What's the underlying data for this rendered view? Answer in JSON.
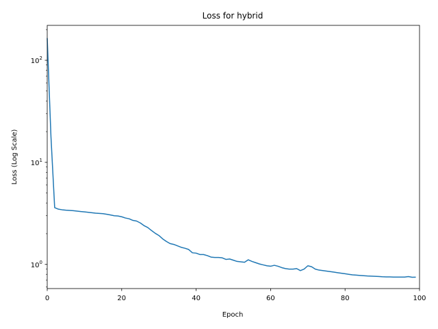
{
  "chart_data": {
    "type": "line",
    "title": "Loss for hybrid",
    "xlabel": "Epoch",
    "ylabel": "Loss (Log Scale)",
    "yscale": "log",
    "xlim": [
      0,
      100
    ],
    "ylim": [
      0.58,
      220
    ],
    "grid": false,
    "color": "#1f77b4",
    "x_ticks": [
      {
        "value": 0,
        "label": "0"
      },
      {
        "value": 20,
        "label": "20"
      },
      {
        "value": 40,
        "label": "40"
      },
      {
        "value": 60,
        "label": "60"
      },
      {
        "value": 80,
        "label": "80"
      },
      {
        "value": 100,
        "label": "100"
      }
    ],
    "y_ticks": [
      {
        "value": 1,
        "base": "10",
        "exp": "0"
      },
      {
        "value": 10,
        "base": "10",
        "exp": "1"
      },
      {
        "value": 100,
        "base": "10",
        "exp": "2"
      }
    ],
    "series": [
      {
        "x": [
          0,
          1,
          2,
          3,
          4,
          5,
          6,
          7,
          8,
          9,
          10,
          11,
          12,
          13,
          14,
          15,
          16,
          17,
          18,
          19,
          20,
          21,
          22,
          23,
          24,
          25,
          26,
          27,
          28,
          29,
          30,
          31,
          32,
          33,
          34,
          35,
          36,
          37,
          38,
          39,
          40,
          41,
          42,
          43,
          44,
          45,
          46,
          47,
          48,
          49,
          50,
          51,
          52,
          53,
          54,
          55,
          56,
          57,
          58,
          59,
          60,
          61,
          62,
          63,
          64,
          65,
          66,
          67,
          68,
          69,
          70,
          71,
          72,
          73,
          74,
          75,
          76,
          77,
          78,
          79,
          80,
          81,
          82,
          83,
          84,
          85,
          86,
          87,
          88,
          89,
          90,
          91,
          92,
          93,
          94,
          95,
          96,
          97,
          98,
          99
        ],
        "values": [
          165,
          18,
          3.6,
          3.48,
          3.43,
          3.4,
          3.38,
          3.36,
          3.33,
          3.3,
          3.27,
          3.24,
          3.21,
          3.18,
          3.16,
          3.14,
          3.1,
          3.05,
          3.0,
          2.98,
          2.93,
          2.85,
          2.8,
          2.7,
          2.66,
          2.55,
          2.4,
          2.3,
          2.15,
          2.02,
          1.92,
          1.78,
          1.68,
          1.6,
          1.57,
          1.52,
          1.47,
          1.44,
          1.4,
          1.3,
          1.29,
          1.25,
          1.25,
          1.22,
          1.18,
          1.17,
          1.17,
          1.16,
          1.12,
          1.13,
          1.1,
          1.07,
          1.06,
          1.05,
          1.11,
          1.07,
          1.04,
          1.01,
          0.99,
          0.97,
          0.96,
          0.98,
          0.96,
          0.93,
          0.91,
          0.9,
          0.9,
          0.91,
          0.87,
          0.9,
          0.97,
          0.95,
          0.9,
          0.88,
          0.87,
          0.86,
          0.85,
          0.84,
          0.83,
          0.82,
          0.81,
          0.8,
          0.79,
          0.785,
          0.78,
          0.775,
          0.77,
          0.767,
          0.765,
          0.762,
          0.757,
          0.755,
          0.754,
          0.752,
          0.752,
          0.751,
          0.751,
          0.76,
          0.749,
          0.75
        ]
      }
    ]
  }
}
